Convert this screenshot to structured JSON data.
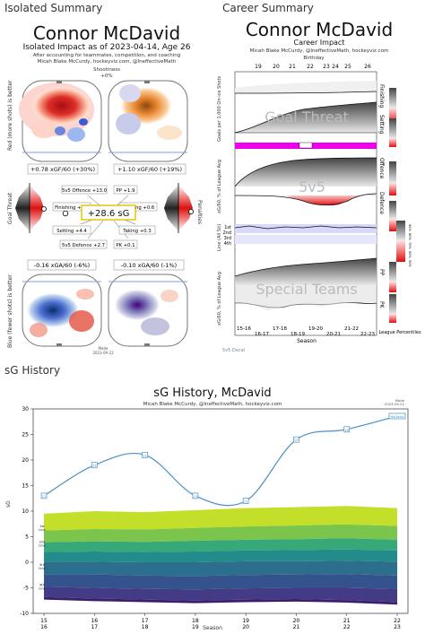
{
  "sections": {
    "isolated_label": "Isolated Summary",
    "career_label": "Career Summary",
    "history_label": "sG History"
  },
  "isolated": {
    "title": "Connor McDavid",
    "subtitle": "Isolated Impact as of 2023-04-14, Age 26",
    "byline1": "After accounting for teammates, competition, and coaching",
    "byline2": "Micah Blake McCurdy, hockeyviz.com, @IneffectiveMath",
    "shootiness_label": "Shootiness",
    "shootiness_value": "+0%",
    "red_axis": "Red (more shots) is better",
    "blue_axis": "Blue (fewer shots) is better",
    "goal_threat_axis": "Goal Threat",
    "penalties_axis": "Penalties",
    "xgf_left": "+0.78 xGF/60 (+30%)",
    "xgf_right": "+1.10 xGF/60 (+19%)",
    "xga_left": "-0.16 xGA/60 (-6%)",
    "xga_right": "-0.10 xGA/60 (-1%)",
    "total_sg": "+28.6 sG",
    "boxes": {
      "offence": "5v5 Offence +13.0",
      "pp": "PP +1.9",
      "finishing": "Finishing +1.6",
      "drawing": "Drawing +0.6",
      "setting": "Setting +4.4",
      "taking": "Taking +0.3",
      "defence": "5v5 Defence +2.7",
      "pk": "PK +0.1"
    },
    "made_label": "Made",
    "made_date": "2023-09-22"
  },
  "career": {
    "title": "Connor McDavid",
    "subtitle": "Career Impact",
    "byline": "Micah Blake McCurdy, @IneffectiveMath, hockeyviz.com",
    "birthday_label": "Birthday",
    "age_ticks": [
      "19",
      "20",
      "21",
      "22",
      "23",
      "24",
      "25",
      "26"
    ],
    "overlay_goal_threat": "Goal Threat",
    "overlay_5v5": "5v5",
    "overlay_special": "Special Teams",
    "ylabel_goals": "Goals per 1,000 On-ice Shots",
    "ylabel_xgvs": "xG/60, % of League Avg",
    "ylabel_line": "Line (All Sit)",
    "ylabel_xg": "xG/60, % of League Avg",
    "line_ticks": [
      "1st",
      "2nd",
      "3rd",
      "4th"
    ],
    "row_labels": [
      "Finishing",
      "Setting",
      "Offence",
      "Defence",
      "PP",
      "PK"
    ],
    "season_ticks": [
      "15-16",
      "16-17",
      "17-18",
      "18-19",
      "19-20",
      "20-21",
      "21-22",
      "22-23"
    ],
    "season_label": "Season",
    "legend_label": "League Percentiles",
    "legend_ticks": [
      "90%",
      "80%",
      "70%",
      "60%",
      "50%"
    ],
    "decal": "5v5 Decal"
  },
  "history": {
    "made_label": "Made",
    "made_date": "2023-09-22"
  },
  "chart_data": {
    "type": "line",
    "title": "sG History, McDavid",
    "subtitle": "Micah Blake McCurdy, @IneffectiveMath, hockeyviz.com",
    "xlabel": "Season",
    "ylabel": "sG",
    "x": [
      {
        "top": "15",
        "bottom": "16"
      },
      {
        "top": "16",
        "bottom": "17"
      },
      {
        "top": "17",
        "bottom": "18"
      },
      {
        "top": "18",
        "bottom": "19"
      },
      {
        "top": "19",
        "bottom": "20"
      },
      {
        "top": "20",
        "bottom": "21"
      },
      {
        "top": "21",
        "bottom": "22"
      },
      {
        "top": "22",
        "bottom": "23"
      }
    ],
    "values": [
      13,
      19,
      21,
      13,
      12,
      24,
      26,
      28.6
    ],
    "point_labels": [
      "13",
      "19",
      "21",
      "13",
      "12",
      "24",
      "26",
      "McDavid"
    ],
    "ylim": [
      -10,
      30
    ],
    "yticks": [
      -10,
      -5,
      0,
      5,
      10,
      15,
      20,
      25,
      30
    ],
    "line_labels": [
      "1st Line",
      "2nd Line",
      "3rd Line",
      "4th Line"
    ],
    "bands": [
      {
        "color": "#c4df2a",
        "top": [
          9.5,
          10,
          9.8,
          10.2,
          10.6,
          10.8,
          11,
          10.6
        ]
      },
      {
        "color": "#7cc54d",
        "top": [
          6.2,
          6.5,
          6.4,
          6.7,
          7,
          7.2,
          7.4,
          7.1
        ]
      },
      {
        "color": "#37a978",
        "top": [
          3.9,
          4.1,
          4,
          4.2,
          4.4,
          4.5,
          4.7,
          4.4
        ]
      },
      {
        "color": "#238c8b",
        "top": [
          2,
          2.1,
          2,
          2.1,
          2.3,
          2.4,
          2.5,
          2.3
        ]
      },
      {
        "color": "#2b6f8d",
        "top": [
          0.1,
          0.1,
          0,
          0,
          0.2,
          0.2,
          0.3,
          0.1
        ]
      },
      {
        "color": "#34528c",
        "top": [
          -2.4,
          -2.4,
          -2.6,
          -2.7,
          -2.5,
          -2.4,
          -2.3,
          -2.6
        ]
      },
      {
        "color": "#433b85",
        "top": [
          -4.8,
          -5,
          -5.2,
          -5.3,
          -5.1,
          -5,
          -5,
          -5.2
        ]
      },
      {
        "color": "#3b1f6d",
        "top": [
          -6.8,
          -7.1,
          -7.3,
          -7.5,
          -7.3,
          -7.2,
          -7.4,
          -7.8
        ]
      }
    ]
  }
}
